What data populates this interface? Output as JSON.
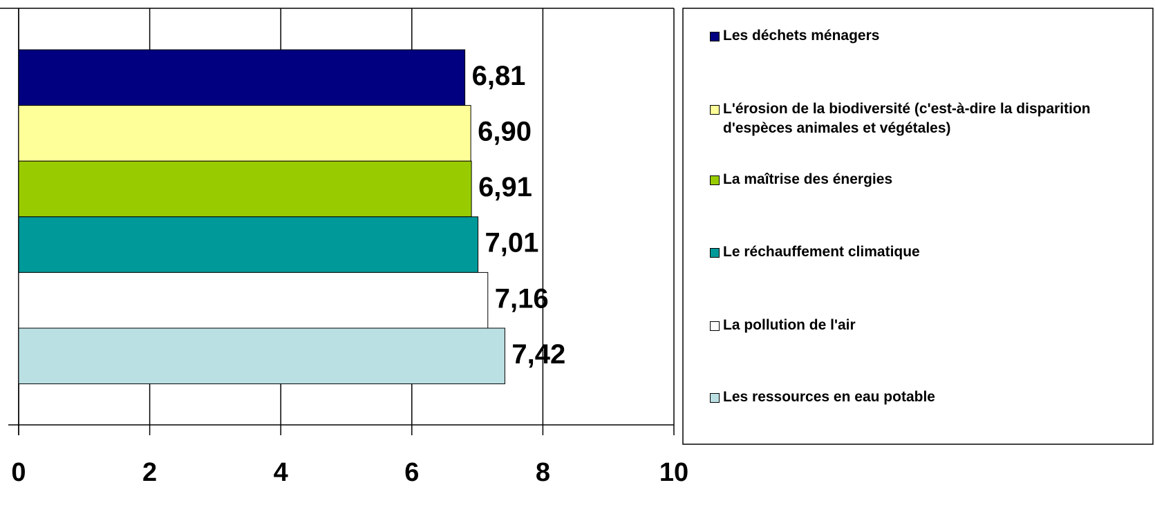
{
  "chart_data": {
    "type": "bar",
    "orientation": "horizontal",
    "categories": [
      "Les déchets ménagers",
      "L'érosion de la biodiversité (c'est-à-dire la disparition d'espèces animales et végétales)",
      "La maîtrise des énergies",
      "Le réchauffement climatique",
      "La pollution de l'air",
      "Les ressources en eau potable"
    ],
    "values": [
      6.81,
      6.9,
      6.91,
      7.01,
      7.16,
      7.42
    ],
    "value_labels": [
      "6,81",
      "6,90",
      "6,91",
      "7,01",
      "7,16",
      "7,42"
    ],
    "colors": [
      "#000080",
      "#ffff99",
      "#99cc00",
      "#009999",
      "#ffffff",
      "#bbe0e3"
    ],
    "xlim": [
      0,
      10
    ],
    "xticks": [
      0,
      2,
      4,
      6,
      8,
      10
    ],
    "grid": true,
    "legend": "right"
  }
}
